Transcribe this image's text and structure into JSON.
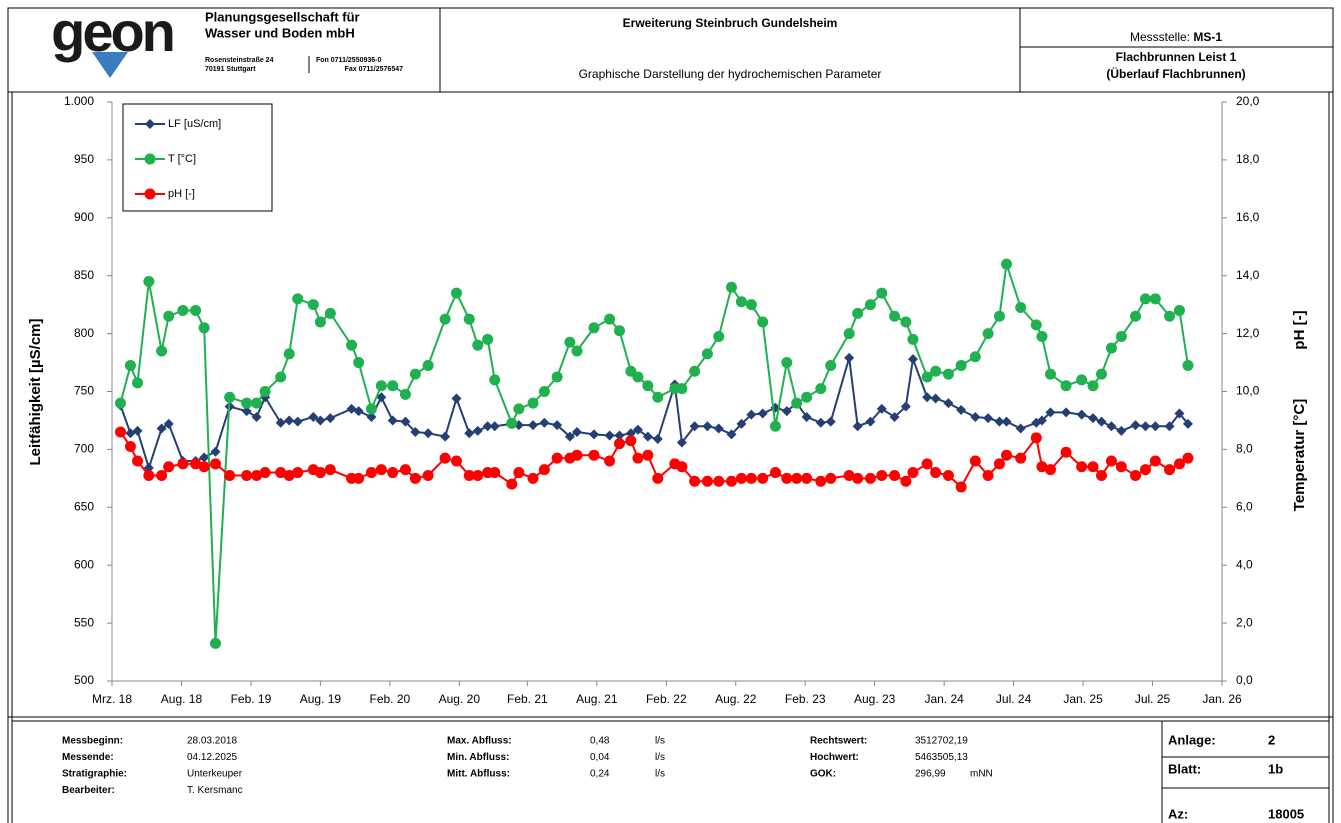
{
  "header": {
    "logo": "geon",
    "company": [
      "Planungsgesellschaft für",
      "Wasser und Boden mbH"
    ],
    "address": [
      "Rosensteinstraße 24",
      "70191 Stuttgart"
    ],
    "phone": [
      "Fon 0711/2550936-0",
      "Fax 0711/2576547"
    ],
    "project": "Erweiterung Steinbruch Gundelsheim",
    "subtitle": "Graphische Darstellung der hydrochemischen Parameter",
    "station_label": "Messstelle:",
    "station": "MS-1",
    "well": "Flachbrunnen Leist 1",
    "well_note": "(Überlauf Flachbrunnen)"
  },
  "chart_data": {
    "type": "line",
    "ylabel": "Leitfähigkeit  [µS/cm]",
    "y2labels": [
      "pH [-]",
      "Temperatur [°C]"
    ],
    "x": [
      2018.23,
      2018.3,
      2018.35,
      2018.43,
      2018.52,
      2018.57,
      2018.67,
      2018.76,
      2018.82,
      2018.9,
      2019.0,
      2019.12,
      2019.19,
      2019.25,
      2019.36,
      2019.42,
      2019.48,
      2019.59,
      2019.64,
      2019.71,
      2019.86,
      2019.91,
      2020.0,
      2020.07,
      2020.15,
      2020.24,
      2020.31,
      2020.4,
      2020.52,
      2020.6,
      2020.69,
      2020.75,
      2020.82,
      2020.87,
      2020.99,
      2021.04,
      2021.14,
      2021.22,
      2021.31,
      2021.4,
      2021.45,
      2021.57,
      2021.68,
      2021.75,
      2021.83,
      2021.88,
      2021.95,
      2022.02,
      2022.14,
      2022.19,
      2022.28,
      2022.37,
      2022.45,
      2022.54,
      2022.61,
      2022.68,
      2022.76,
      2022.85,
      2022.93,
      2023.0,
      2023.07,
      2023.17,
      2023.24,
      2023.37,
      2023.43,
      2023.52,
      2023.6,
      2023.69,
      2023.77,
      2023.82,
      2023.92,
      2023.98,
      2024.07,
      2024.16,
      2024.26,
      2024.35,
      2024.43,
      2024.48,
      2024.58,
      2024.69,
      2024.73,
      2024.79,
      2024.9,
      2025.01,
      2025.09,
      2025.15,
      2025.22,
      2025.29,
      2025.39,
      2025.46,
      2025.53,
      2025.63,
      2025.7,
      2025.76
    ],
    "series": [
      {
        "name": "LF [uS/cm]",
        "color": "#243f73",
        "marker": "diamond",
        "values": [
          738,
          714,
          716,
          684,
          718,
          722,
          690,
          690,
          693,
          698,
          737,
          733,
          728,
          745,
          723,
          725,
          724,
          728,
          725,
          727,
          735,
          733,
          728,
          745,
          725,
          724,
          715,
          714,
          711,
          744,
          714,
          716,
          720,
          720,
          722,
          721,
          721,
          723,
          721,
          711,
          715,
          713,
          712,
          712,
          714,
          717,
          711,
          709,
          756,
          706,
          720,
          720,
          718,
          713,
          722,
          730,
          731,
          736,
          733,
          740,
          728,
          723,
          724,
          779,
          720,
          724,
          735,
          728,
          737,
          778,
          745,
          744,
          740,
          734,
          728,
          727,
          724,
          724,
          718,
          723,
          725,
          732,
          732,
          730,
          727,
          724,
          720,
          716,
          721,
          720,
          720,
          720,
          731,
          722
        ]
      },
      {
        "name": "T [°C]",
        "color": "#1fb050",
        "marker": "circle",
        "axis": "y2",
        "values": [
          9.6,
          10.9,
          10.3,
          13.8,
          11.4,
          12.6,
          12.8,
          12.8,
          12.2,
          1.3,
          9.8,
          9.6,
          9.6,
          10.0,
          10.5,
          11.3,
          13.2,
          13.0,
          12.4,
          12.7,
          11.6,
          11.0,
          9.4,
          10.2,
          10.2,
          9.9,
          10.6,
          10.9,
          12.5,
          13.4,
          12.5,
          11.6,
          11.8,
          10.4,
          8.9,
          9.4,
          9.6,
          10.0,
          10.5,
          11.7,
          11.4,
          12.2,
          12.5,
          12.1,
          10.7,
          10.5,
          10.2,
          9.8,
          10.1,
          10.1,
          10.7,
          11.3,
          11.9,
          13.6,
          13.1,
          13.0,
          12.4,
          8.8,
          11.0,
          9.6,
          9.8,
          10.1,
          10.9,
          12.0,
          12.7,
          13.0,
          13.4,
          12.6,
          12.4,
          11.8,
          10.5,
          10.7,
          10.6,
          10.9,
          11.2,
          12.0,
          12.6,
          14.4,
          12.9,
          12.3,
          11.9,
          10.6,
          10.2,
          10.4,
          10.2,
          10.6,
          11.5,
          11.9,
          12.6,
          13.2,
          13.2,
          12.6,
          12.8,
          10.9
        ]
      },
      {
        "name": "pH [-]",
        "color": "#ff0000",
        "marker": "circle",
        "axis": "y2",
        "values": [
          8.6,
          8.1,
          7.6,
          7.1,
          7.1,
          7.4,
          7.5,
          7.5,
          7.4,
          7.5,
          7.1,
          7.1,
          7.1,
          7.2,
          7.2,
          7.1,
          7.2,
          7.3,
          7.2,
          7.3,
          7.0,
          7.0,
          7.2,
          7.3,
          7.2,
          7.3,
          7.0,
          7.1,
          7.7,
          7.6,
          7.1,
          7.1,
          7.2,
          7.2,
          6.8,
          7.2,
          7.0,
          7.3,
          7.7,
          7.7,
          7.8,
          7.8,
          7.6,
          8.2,
          8.3,
          7.7,
          7.8,
          7.0,
          7.5,
          7.4,
          6.9,
          6.9,
          6.9,
          6.9,
          7.0,
          7.0,
          7.0,
          7.2,
          7.0,
          7.0,
          7.0,
          6.9,
          7.0,
          7.1,
          7.0,
          7.0,
          7.1,
          7.1,
          6.9,
          7.2,
          7.5,
          7.2,
          7.1,
          6.7,
          7.6,
          7.1,
          7.5,
          7.8,
          7.7,
          8.4,
          7.4,
          7.3,
          7.9,
          7.4,
          7.4,
          7.1,
          7.6,
          7.4,
          7.1,
          7.3,
          7.6,
          7.3,
          7.5,
          7.7
        ]
      }
    ],
    "xlim": [
      2018.17,
      2026.0
    ],
    "xticks": [
      {
        "value": 2018.17,
        "label": "Mrz. 18"
      },
      {
        "value": 2018.66,
        "label": "Aug. 18"
      },
      {
        "value": 2019.15,
        "label": "Feb. 19"
      },
      {
        "value": 2019.64,
        "label": "Aug. 19"
      },
      {
        "value": 2020.13,
        "label": "Feb. 20"
      },
      {
        "value": 2020.62,
        "label": "Aug. 20"
      },
      {
        "value": 2021.1,
        "label": "Feb. 21"
      },
      {
        "value": 2021.59,
        "label": "Aug. 21"
      },
      {
        "value": 2022.08,
        "label": "Feb. 22"
      },
      {
        "value": 2022.57,
        "label": "Aug. 22"
      },
      {
        "value": 2023.06,
        "label": "Feb. 23"
      },
      {
        "value": 2023.55,
        "label": "Aug. 23"
      },
      {
        "value": 2024.04,
        "label": "Jan. 24"
      },
      {
        "value": 2024.53,
        "label": "Jul. 24"
      },
      {
        "value": 2025.02,
        "label": "Jan. 25"
      },
      {
        "value": 2025.51,
        "label": "Jul. 25"
      },
      {
        "value": 2026.0,
        "label": "Jan. 26"
      }
    ],
    "ylim": [
      500,
      1000
    ],
    "yticks": [
      500,
      550,
      600,
      650,
      700,
      750,
      800,
      850,
      900,
      950,
      {
        "value": 1000,
        "label": "1.000"
      }
    ],
    "y2lim": [
      0,
      20
    ],
    "y2ticks": [
      {
        "value": 0,
        "label": "0,0"
      },
      {
        "value": 2,
        "label": "2,0"
      },
      {
        "value": 4,
        "label": "4,0"
      },
      {
        "value": 6,
        "label": "6,0"
      },
      {
        "value": 8,
        "label": "8,0"
      },
      {
        "value": 10,
        "label": "10,0"
      },
      {
        "value": 12,
        "label": "12,0"
      },
      {
        "value": 14,
        "label": "14,0"
      },
      {
        "value": 16,
        "label": "16,0"
      },
      {
        "value": 18,
        "label": "18,0"
      },
      {
        "value": 20,
        "label": "20,0"
      }
    ],
    "legend": "upper left",
    "grid": false
  },
  "footer": {
    "columns": [
      [
        {
          "label": "Messbeginn:",
          "value": "28.03.2018"
        },
        {
          "label": "Messende:",
          "value": "04.12.2025"
        },
        {
          "label": "Stratigraphie:",
          "value": "Unterkeuper"
        },
        {
          "label": "Bearbeiter:",
          "value": "T. Kersmanc"
        }
      ],
      [
        {
          "label": "Max. Abfluss:",
          "value": "0,48",
          "unit": "l/s"
        },
        {
          "label": "Min. Abfluss:",
          "value": "0,04",
          "unit": "l/s"
        },
        {
          "label": "Mitt. Abfluss:",
          "value": "0,24",
          "unit": "l/s"
        }
      ],
      [
        {
          "label": "Rechtswert:",
          "value": "3512702,19"
        },
        {
          "label": "Hochwert:",
          "value": "5463505,13"
        },
        {
          "label": "GOK:",
          "value": "296,99",
          "unit": "mNN"
        }
      ]
    ],
    "sheet": [
      {
        "label": "Anlage:",
        "value": "2"
      },
      {
        "label": "Blatt:",
        "value": "1b"
      },
      {
        "label": "Az:",
        "value": "18005"
      }
    ]
  }
}
